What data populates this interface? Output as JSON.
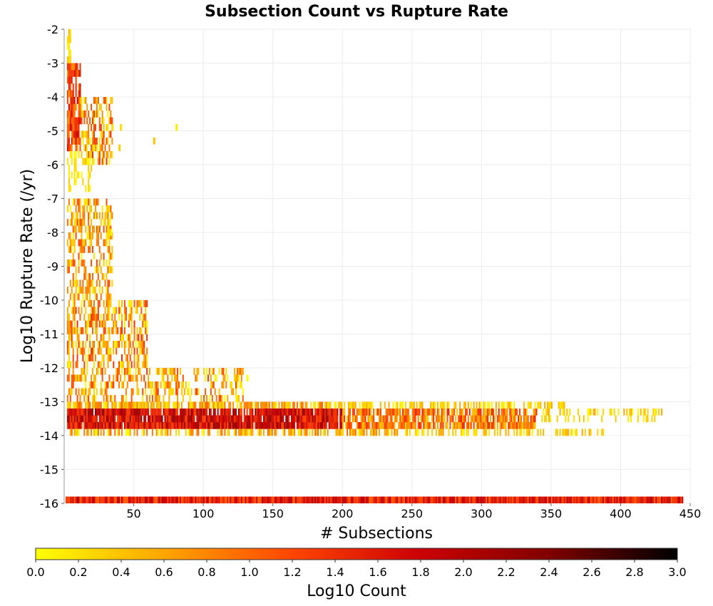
{
  "chart_data": {
    "type": "heatmap",
    "title": "Subsection Count vs Rupture Rate",
    "xlabel": "# Subsections",
    "ylabel": "Log10 Rupture Rate (/yr)",
    "colorbar_label": "Log10 Count",
    "xlim": [
      0,
      450
    ],
    "ylim": [
      -16,
      -2
    ],
    "x_ticks": [
      50,
      100,
      150,
      200,
      250,
      300,
      350,
      400,
      450
    ],
    "y_ticks": [
      -2,
      -3,
      -4,
      -5,
      -6,
      -7,
      -8,
      -9,
      -10,
      -11,
      -12,
      -13,
      -14,
      -15,
      -16
    ],
    "colorbar_range": [
      0.0,
      3.0
    ],
    "colorbar_ticks": [
      "0.0",
      "0.2",
      "0.4",
      "0.6",
      "0.8",
      "1.0",
      "1.2",
      "1.4",
      "1.6",
      "1.8",
      "2.0",
      "2.2",
      "2.4",
      "2.6",
      "2.8",
      "3.0"
    ],
    "colormap": [
      "#ffff00",
      "#ffa500",
      "#ff4500",
      "#cc0000",
      "#800000",
      "#000000"
    ],
    "grid": true,
    "legend_position": "bottom",
    "bin_width_x": 1,
    "bin_height_y": 0.2,
    "regions": [
      {
        "x": [
          2,
          12
        ],
        "y": [
          -5.6,
          -3.0
        ],
        "log10_count": [
          0.6,
          1.8
        ],
        "density": 0.8
      },
      {
        "x": [
          2,
          5
        ],
        "y": [
          -3.0,
          -2.1
        ],
        "log10_count": [
          0.0,
          0.5
        ],
        "density": 0.7
      },
      {
        "x": [
          12,
          35
        ],
        "y": [
          -6.0,
          -4.0
        ],
        "log10_count": [
          0.0,
          1.4
        ],
        "density": 0.45
      },
      {
        "x": [
          2,
          20
        ],
        "y": [
          -6.8,
          -5.6
        ],
        "log10_count": [
          0.0,
          0.4
        ],
        "density": 0.35
      },
      {
        "x": [
          2,
          35
        ],
        "y": [
          -10.0,
          -7.0
        ],
        "log10_count": [
          0.0,
          1.2
        ],
        "density": 0.5
      },
      {
        "x": [
          2,
          60
        ],
        "y": [
          -12.0,
          -10.0
        ],
        "log10_count": [
          0.0,
          1.4
        ],
        "density": 0.5
      },
      {
        "x": [
          2,
          130
        ],
        "y": [
          -13.0,
          -12.0
        ],
        "log10_count": [
          0.0,
          1.3
        ],
        "density": 0.4
      },
      {
        "x": [
          2,
          190
        ],
        "y": [
          -13.2,
          -13.0
        ],
        "log10_count": [
          0.1,
          1.0
        ],
        "density": 0.8
      },
      {
        "x": [
          190,
          360
        ],
        "y": [
          -13.2,
          -13.0
        ],
        "log10_count": [
          0.0,
          0.6
        ],
        "density": 0.6
      },
      {
        "x": [
          2,
          200
        ],
        "y": [
          -13.8,
          -13.2
        ],
        "log10_count": [
          1.2,
          2.3
        ],
        "density": 0.95
      },
      {
        "x": [
          200,
          340
        ],
        "y": [
          -13.8,
          -13.2
        ],
        "log10_count": [
          0.3,
          1.5
        ],
        "density": 0.8
      },
      {
        "x": [
          340,
          430
        ],
        "y": [
          -13.6,
          -13.2
        ],
        "log10_count": [
          0.0,
          0.6
        ],
        "density": 0.3
      },
      {
        "x": [
          2,
          240
        ],
        "y": [
          -14.0,
          -13.8
        ],
        "log10_count": [
          0.0,
          1.0
        ],
        "density": 0.6
      },
      {
        "x": [
          240,
          390
        ],
        "y": [
          -14.0,
          -13.8
        ],
        "log10_count": [
          0.0,
          0.6
        ],
        "density": 0.4
      },
      {
        "x": [
          1,
          445
        ],
        "y": [
          -16.0,
          -15.8
        ],
        "log10_count": [
          1.0,
          2.0
        ],
        "density": 1.0
      }
    ],
    "isolated_points": [
      {
        "x": 34,
        "y": -5.0,
        "log10_count": 0.2
      },
      {
        "x": 40,
        "y": -5.0,
        "log10_count": 0.2
      },
      {
        "x": 39,
        "y": -5.6,
        "log10_count": 0.3
      },
      {
        "x": 64,
        "y": -5.4,
        "log10_count": 0.4
      },
      {
        "x": 80,
        "y": -5.0,
        "log10_count": 0.1
      },
      {
        "x": 32,
        "y": -7.8,
        "log10_count": 0.1
      },
      {
        "x": 33,
        "y": -8.1,
        "log10_count": 0.1
      },
      {
        "x": 131,
        "y": -12.4,
        "log10_count": 0.0
      },
      {
        "x": 131,
        "y": -14.0,
        "log10_count": 0.3
      }
    ]
  }
}
